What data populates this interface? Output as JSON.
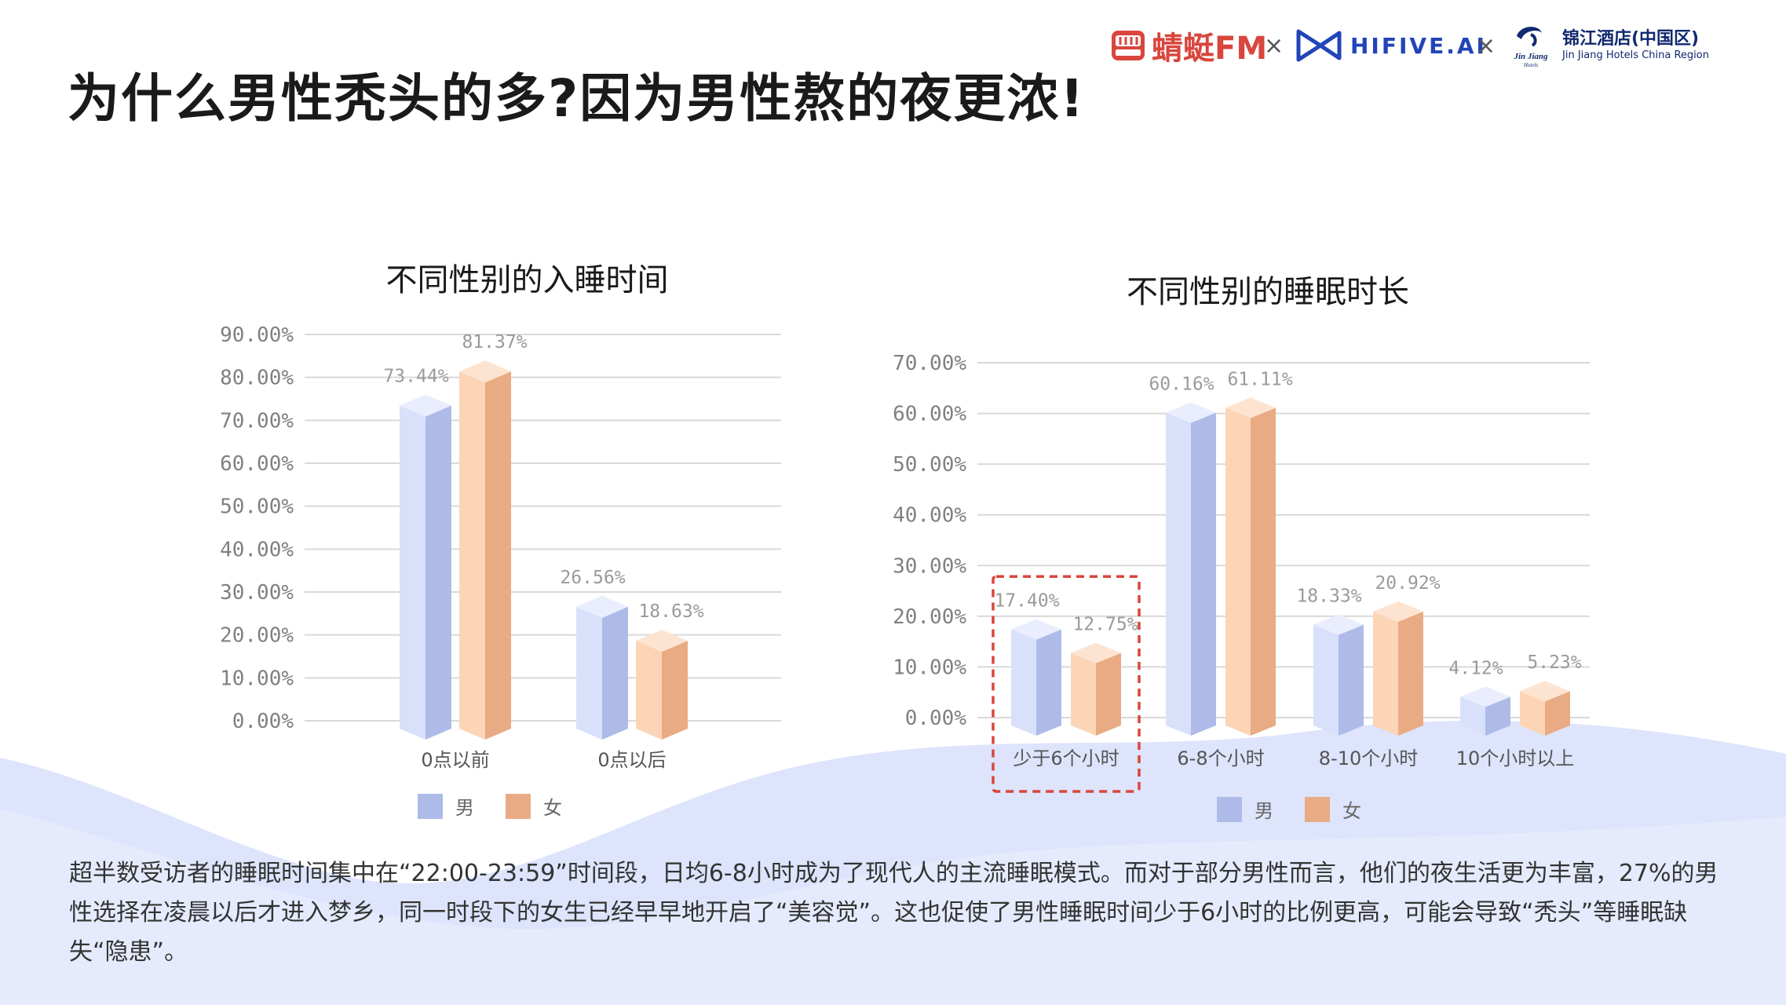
{
  "page": {
    "title": "为什么男性秃头的多?因为男性熬的夜更浓!",
    "description": "超半数受访者的睡眠时间集中在“22:00-23:59”时间段，日均6-8小时成为了现代人的主流睡眠模式。而对于部分男性而言，他们的夜生活更为丰富，27%的男性选择在凌晨以后才进入梦乡，同一时段下的女生已经早早地开启了“美容觉”。这也促使了男性睡眠时间少于6小时的比例更高，可能会导致“秃头”等睡眠缺失“隐患”。"
  },
  "logos": {
    "qingting": "蜻蜓FM",
    "cross": "×",
    "hifive": "HIFIVE.AI",
    "jinjiang_cn": "锦江酒店(中国区)",
    "jinjiang_en": "Jin Jiang Hotels China Region",
    "jinjiang_mark_text": "Jin Jiang",
    "jinjiang_mark_sub": "Hotels"
  },
  "colors": {
    "male_front": "#d9e0fa",
    "male_side": "#aebbe9",
    "male_top": "#e9edfd",
    "female_front": "#fcd4b6",
    "female_side": "#e9ab84",
    "female_top": "#fde4d1",
    "grid": "#d9d9d9",
    "label": "#808080",
    "highlight": "#d9463b",
    "wave": "#dde4fb"
  },
  "chart_data": [
    {
      "type": "bar",
      "title": "不同性别的入睡时间",
      "categories": [
        "0点以前",
        "0点以后"
      ],
      "series": [
        {
          "name": "男",
          "values": [
            73.44,
            26.56
          ],
          "labels": [
            "73.44%",
            "26.56%"
          ]
        },
        {
          "name": "女",
          "values": [
            81.37,
            18.63
          ],
          "labels": [
            "81.37%",
            "18.63%"
          ]
        }
      ],
      "ylim": [
        0,
        90
      ],
      "yticks": [
        0,
        10,
        20,
        30,
        40,
        50,
        60,
        70,
        80,
        90
      ],
      "ytick_labels": [
        "0.00%",
        "10.00%",
        "20.00%",
        "30.00%",
        "40.00%",
        "50.00%",
        "60.00%",
        "70.00%",
        "80.00%",
        "90.00%"
      ],
      "grid": true,
      "legend": "bottom"
    },
    {
      "type": "bar",
      "title": "不同性别的睡眠时长",
      "categories": [
        "少于6个小时",
        "6-8个小时",
        "8-10个小时",
        "10个小时以上"
      ],
      "series": [
        {
          "name": "男",
          "values": [
            17.4,
            60.16,
            18.33,
            4.12
          ],
          "labels": [
            "17.40%",
            "60.16%",
            "18.33%",
            "4.12%"
          ]
        },
        {
          "name": "女",
          "values": [
            12.75,
            61.11,
            20.92,
            5.23
          ],
          "labels": [
            "12.75%",
            "61.11%",
            "20.92%",
            "5.23%"
          ]
        }
      ],
      "ylim": [
        0,
        70
      ],
      "yticks": [
        0,
        10,
        20,
        30,
        40,
        50,
        60,
        70
      ],
      "ytick_labels": [
        "0.00%",
        "10.00%",
        "20.00%",
        "30.00%",
        "40.00%",
        "50.00%",
        "60.00%",
        "70.00%"
      ],
      "grid": true,
      "legend": "bottom",
      "highlighted_category": "少于6个小时"
    }
  ]
}
